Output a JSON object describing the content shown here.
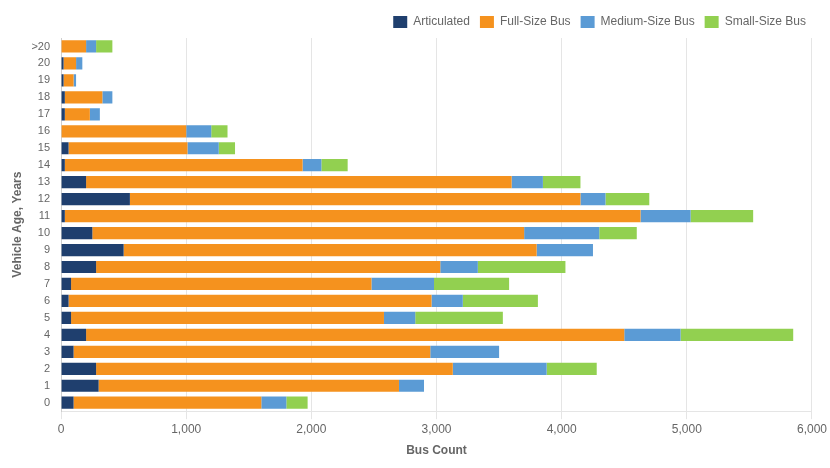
{
  "chart_data": {
    "type": "bar",
    "orientation": "horizontal",
    "stacked": true,
    "categories": [
      "0",
      "1",
      "2",
      "3",
      "4",
      "5",
      "6",
      "7",
      "8",
      "9",
      "10",
      "11",
      "12",
      "13",
      "14",
      "15",
      "16",
      "17",
      "18",
      "19",
      "20",
      ">20"
    ],
    "series": [
      {
        "name": "Articulated",
        "color": "#1F3F6E",
        "values": [
          100,
          300,
          280,
          100,
          200,
          80,
          60,
          80,
          280,
          500,
          250,
          30,
          550,
          200,
          30,
          60,
          0,
          30,
          30,
          20,
          20,
          0
        ]
      },
      {
        "name": "Full-Size Bus",
        "color": "#F5921E",
        "values": [
          1500,
          2400,
          2850,
          2850,
          4300,
          2500,
          2900,
          2400,
          2750,
          3300,
          3450,
          4600,
          3600,
          3400,
          1900,
          950,
          1000,
          200,
          300,
          80,
          100,
          200
        ]
      },
      {
        "name": "Medium-Size Bus",
        "color": "#5B9BD5",
        "values": [
          200,
          200,
          750,
          550,
          450,
          250,
          250,
          500,
          300,
          450,
          600,
          400,
          200,
          250,
          150,
          250,
          200,
          80,
          80,
          20,
          50,
          80
        ]
      },
      {
        "name": "Small-Size Bus",
        "color": "#92D050",
        "values": [
          170,
          0,
          400,
          0,
          900,
          700,
          600,
          600,
          700,
          0,
          300,
          500,
          350,
          300,
          210,
          130,
          130,
          0,
          0,
          0,
          0,
          130
        ]
      }
    ],
    "xlabel": "Bus Count",
    "ylabel": "Vehicle Age, Years",
    "xlim": [
      0,
      6000
    ],
    "xticks": [
      0,
      {
        "value": 1000,
        "label": "1,000"
      },
      {
        "value": 2000,
        "label": "2,000"
      },
      {
        "value": 3000,
        "label": "3,000"
      },
      {
        "value": 4000,
        "label": "4,000"
      },
      {
        "value": 5000,
        "label": "5,000"
      },
      {
        "value": 6000,
        "label": "6,000"
      }
    ],
    "grid": "x",
    "legend": "upper right"
  }
}
